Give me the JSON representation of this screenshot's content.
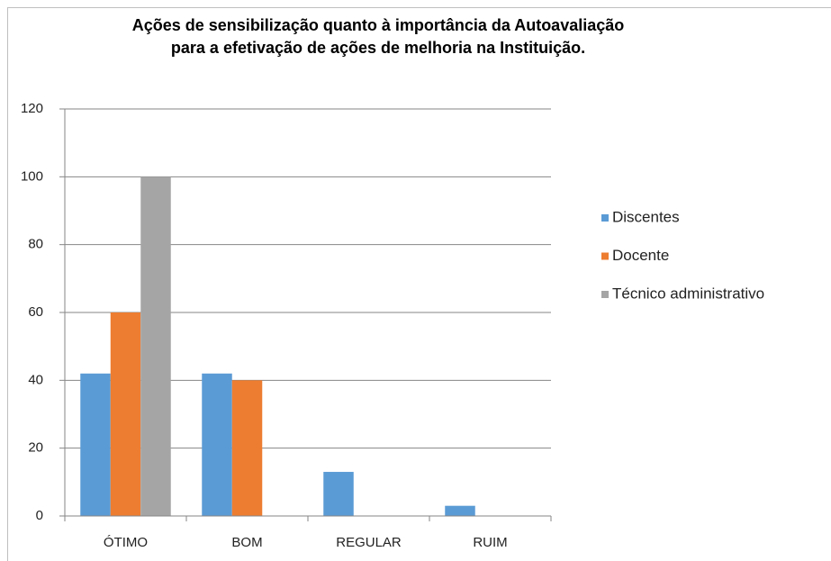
{
  "chart_data": {
    "type": "bar",
    "title": "Ações de sensibilização quanto à importância da Autoavaliação para a efetivação de ações de melhoria na Instituição.",
    "categories": [
      "ÓTIMO",
      "BOM",
      "REGULAR",
      "RUIM"
    ],
    "series": [
      {
        "name": "Discentes",
        "color": "#5b9bd5",
        "values": [
          42,
          42,
          13,
          3
        ]
      },
      {
        "name": "Docente",
        "color": "#ed7d31",
        "values": [
          60,
          40,
          0,
          0
        ]
      },
      {
        "name": "Técnico administrativo",
        "color": "#a5a5a5",
        "values": [
          100,
          0,
          0,
          0
        ]
      }
    ],
    "ylim": [
      0,
      120
    ],
    "yticks": [
      0,
      20,
      40,
      60,
      80,
      100,
      120
    ],
    "grid": true,
    "legend": "right"
  }
}
